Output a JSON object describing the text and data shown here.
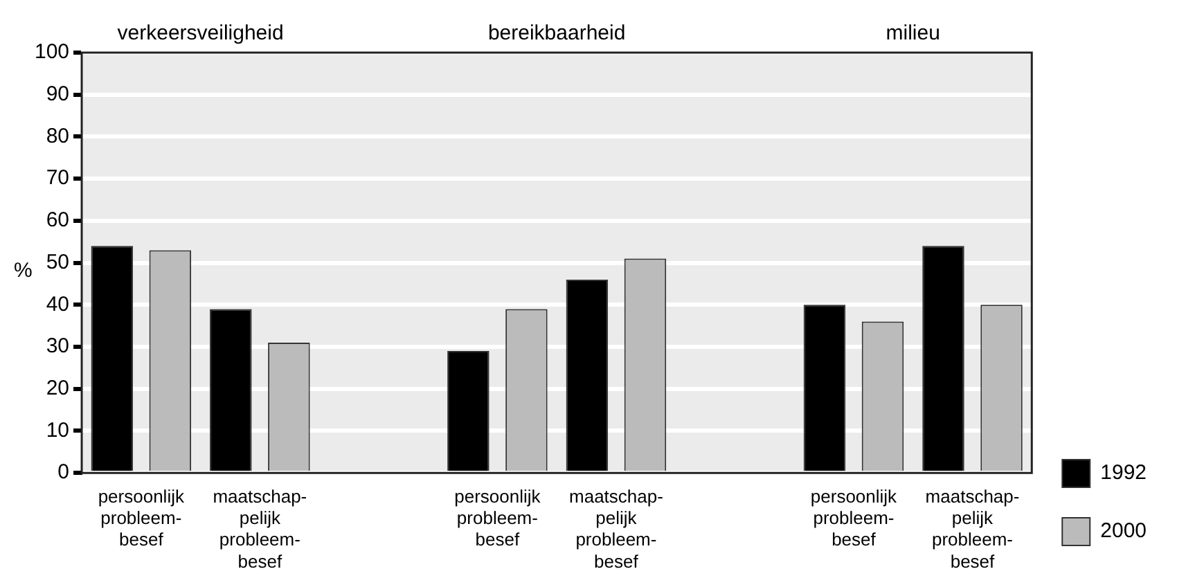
{
  "chart_data": {
    "type": "bar",
    "ylabel": "%",
    "annotations": [
      "verkeersveiligheid",
      "bereikbaarheid",
      "milieu"
    ],
    "categories": [
      "persoonlijk\nprobleem-\nbesef",
      "maatschap-\npelijk\nprobleem-\nbesef",
      null,
      "persoonlijk\nprobleem-\nbesef",
      "maatschap-\npelijk\nprobleem-\nbesef",
      null,
      "persoonlijk\nprobleem-\nbesef",
      "maatschap-\npelijk\nprobleem-\nbesef"
    ],
    "series": [
      {
        "name": "1992",
        "color": "#000000",
        "values": [
          54,
          39,
          null,
          29,
          46,
          null,
          40,
          54
        ]
      },
      {
        "name": "2000",
        "color": "#bbbbbb",
        "values": [
          53,
          31,
          null,
          39,
          51,
          null,
          36,
          40
        ]
      }
    ],
    "ylim": [
      0,
      100
    ],
    "yticks": [
      0,
      10,
      20,
      30,
      40,
      50,
      60,
      70,
      80,
      90,
      100
    ],
    "grid": "y",
    "legend": "bottom right"
  }
}
